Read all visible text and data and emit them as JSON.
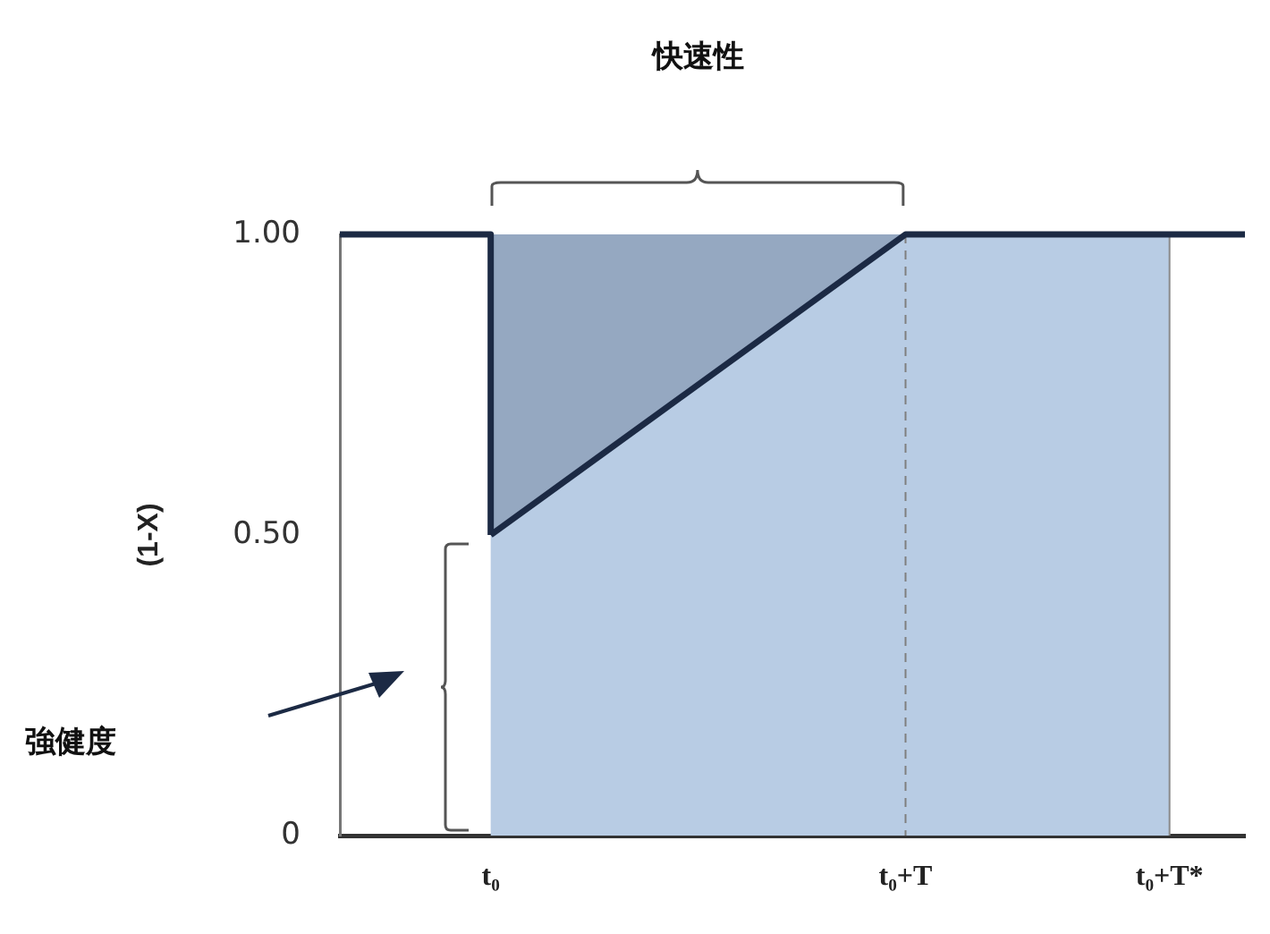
{
  "chart_data": {
    "type": "line",
    "ylabel": "(1-X)",
    "annotations": [
      "快速性",
      "強健度"
    ],
    "categories": [
      null,
      null,
      null,
      null,
      "t₀",
      null,
      null,
      null,
      null,
      null,
      null,
      null,
      null,
      null,
      null,
      "t₀+T",
      null,
      null,
      null,
      null,
      null,
      null,
      "t₀+T*",
      null,
      null
    ],
    "ylim": [
      0,
      1
    ],
    "yticks": [
      0,
      {
        "value": 0.5,
        "label": "0.50"
      },
      {
        "value": 1,
        "label": "1.00"
      }
    ],
    "series": [
      {
        "type": "step",
        "color": "#1c2a44",
        "values": [
          1,
          1,
          1,
          1,
          0.5,
          null,
          null,
          null,
          null,
          null,
          null,
          null,
          null,
          null,
          null,
          null,
          null,
          null,
          null,
          null,
          null,
          null,
          null,
          null,
          null
        ]
      },
      {
        "color": "#1c2a44",
        "values": [
          null,
          null,
          null,
          null,
          0.5,
          null,
          null,
          null,
          null,
          null,
          null,
          null,
          null,
          null,
          null,
          1,
          null,
          null,
          null,
          null,
          null,
          null,
          null,
          null,
          1
        ],
        "lower": [
          null,
          null,
          null,
          null,
          0.5,
          null,
          null,
          null,
          null,
          null,
          null,
          null,
          null,
          null,
          null,
          1,
          null,
          null,
          null,
          null,
          null,
          null,
          null,
          null,
          null
        ],
        "upper": [
          null,
          null,
          null,
          null,
          1,
          null,
          null,
          null,
          null,
          null,
          null,
          null,
          null,
          null,
          null,
          1,
          null,
          null,
          null,
          null,
          null,
          null,
          null,
          null,
          null
        ]
      }
    ],
    "bands": [
      {
        "axis": "x",
        "from": "t₀",
        "to": "t₀+T*",
        "color": "#b8cce4"
      }
    ],
    "ref_lines": [
      {
        "axis": "x",
        "value": "t₀+T",
        "color": "#7f7f7f",
        "line_style": "dashed"
      }
    ],
    "grid": false,
    "legend": false,
    "marker": "none",
    "line_style": "solid"
  }
}
